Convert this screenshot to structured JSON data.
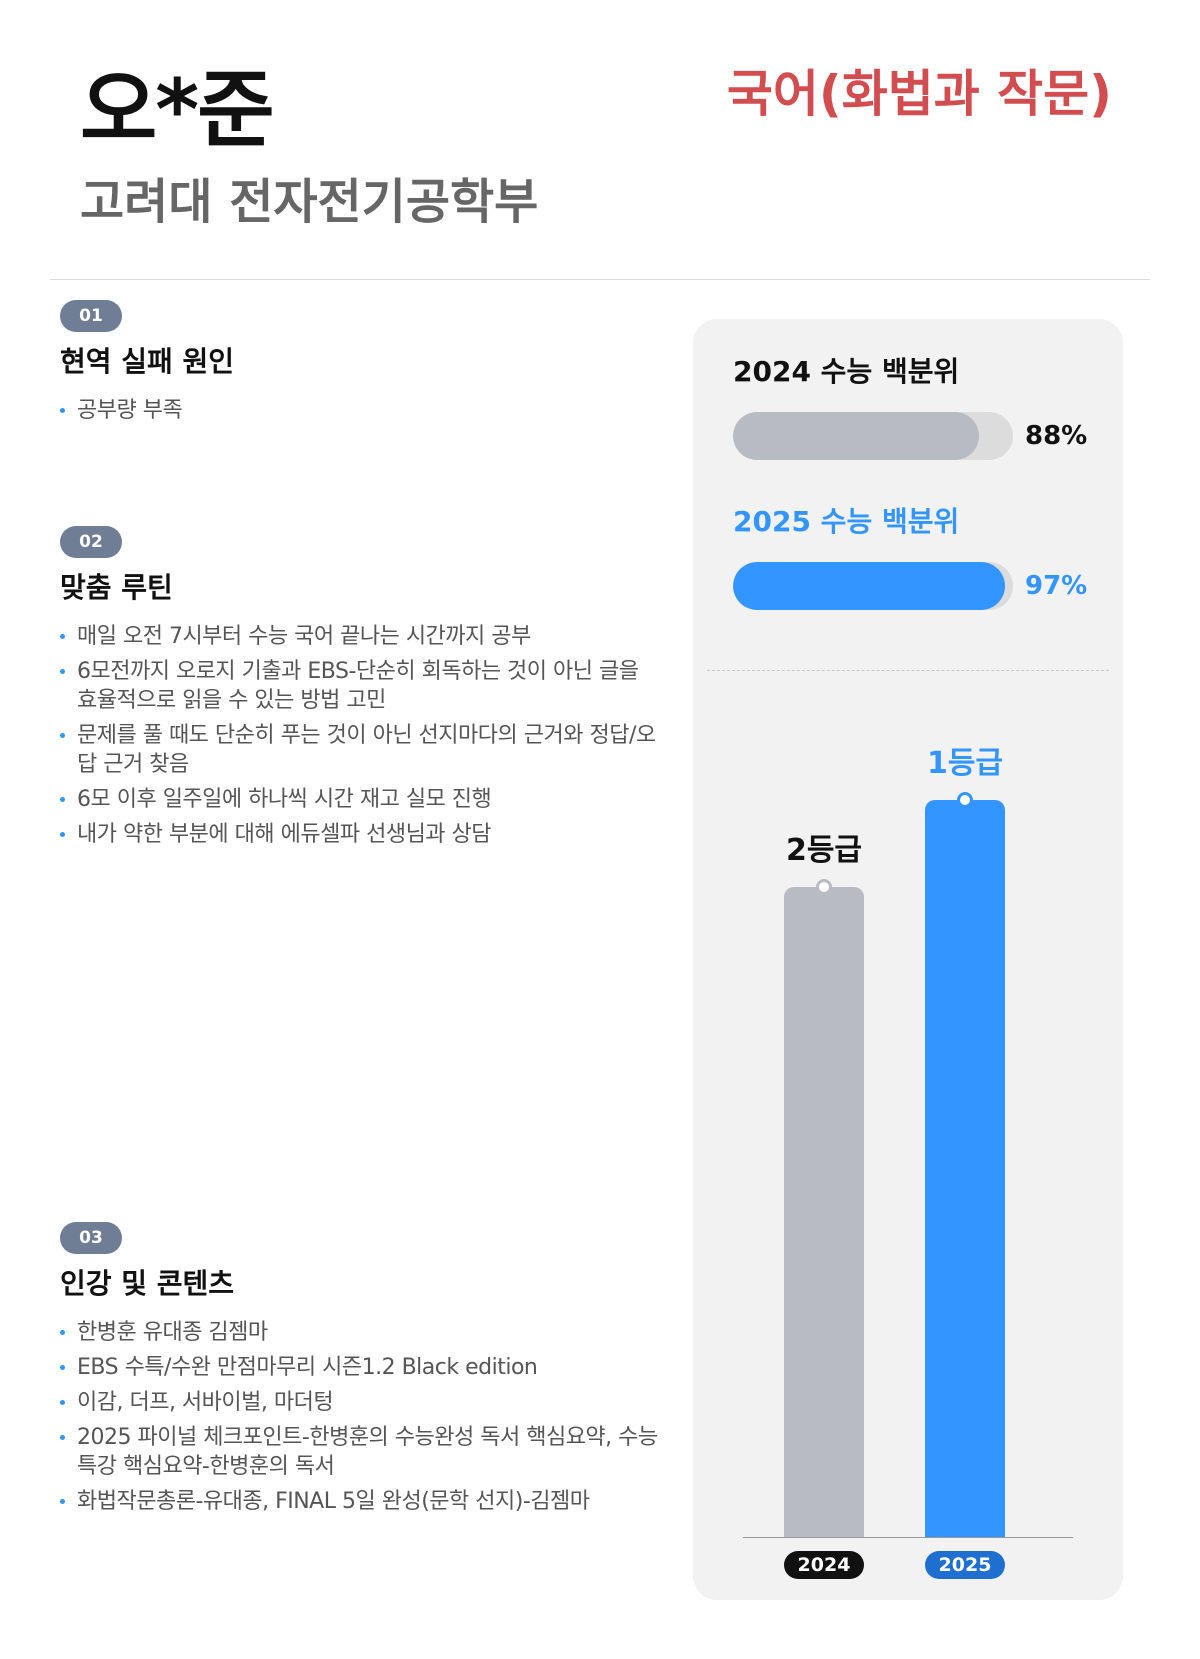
{
  "header": {
    "name": "오*준",
    "school": "고려대 전자전기공학부",
    "subject": "국어(화법과 작문)"
  },
  "sections": [
    {
      "number": "01",
      "title": "현역 실패 원인",
      "items": [
        "공부량 부족"
      ]
    },
    {
      "number": "02",
      "title": "맞춤 루틴",
      "items": [
        "매일 오전 7시부터 수능 국어 끝나는 시간까지 공부",
        "6모전까지 오로지 기출과 EBS-단순히 회독하는 것이 아닌 글을 효율적으로 읽을 수 있는 방법 고민",
        "문제를 풀 때도 단순히 푸는 것이 아닌 선지마다의 근거와 정답/오답 근거 찾음",
        "6모 이후 일주일에 하나씩 시간 재고 실모 진행",
        "내가 약한 부분에 대해 에듀셀파 선생님과 상담"
      ]
    },
    {
      "number": "03",
      "title": "인강 및 콘텐츠",
      "items": [
        "한병훈 유대종 김젬마",
        "EBS 수특/수완 만점마무리 시즌1.2 Black edition",
        "이감, 더프, 서바이벌, 마더텅",
        "2025 파이널 체크포인트-한병훈의 수능완성 독서 핵심요약, 수능특강 핵심요약-한병훈의 독서",
        "화법작문총론-유대종, FINAL 5일 완성(문학 선지)-김젬마"
      ]
    }
  ],
  "chart_data": [
    {
      "type": "bar",
      "orientation": "horizontal",
      "series": [
        {
          "name": "2024 수능 백분위",
          "value": 88,
          "value_label": "88%",
          "color": "#b9bbc3"
        },
        {
          "name": "2025 수능 백분위",
          "value": 97,
          "value_label": "97%",
          "color": "#3395ff"
        }
      ],
      "ylim": [
        0,
        100
      ]
    },
    {
      "type": "bar",
      "categories": [
        "2024",
        "2025"
      ],
      "labels": [
        "2등급",
        "1등급"
      ],
      "values": [
        2,
        1
      ],
      "colors": [
        "#b9bbc3",
        "#3395ff"
      ],
      "label_colors": [
        "#111111",
        "#3395ff"
      ],
      "pill_colors": [
        "#111111",
        "#1f6fd1"
      ]
    }
  ]
}
